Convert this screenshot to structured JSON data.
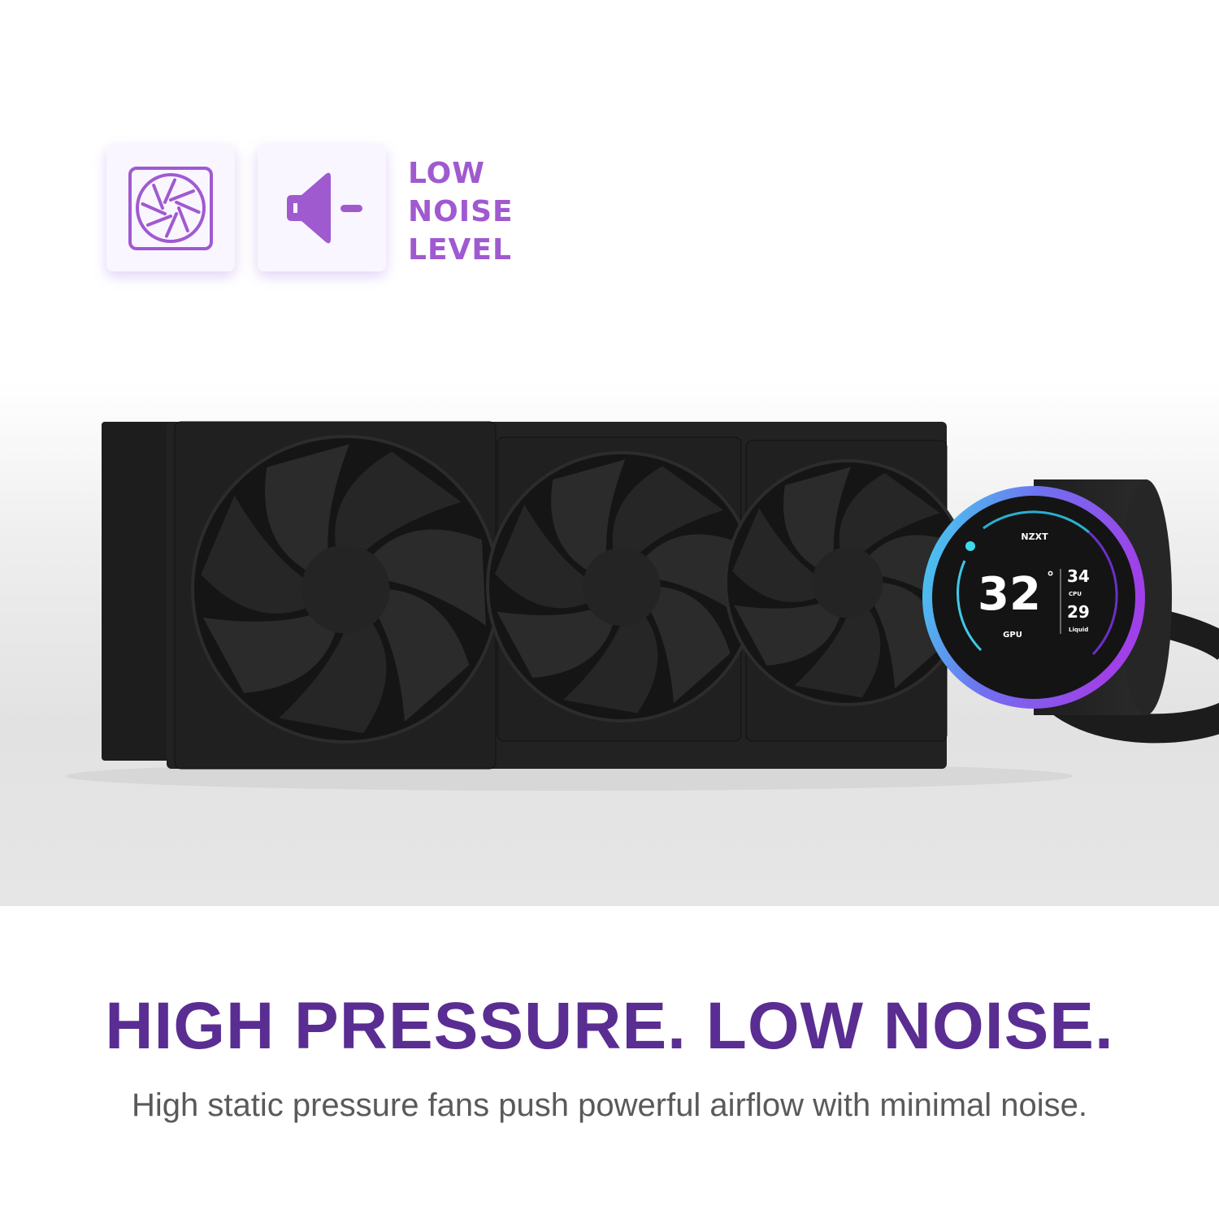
{
  "feature": {
    "icons": [
      "fan-icon",
      "speaker-low-volume-icon"
    ],
    "label_lines": [
      "LOW",
      "NOISE",
      "LEVEL"
    ]
  },
  "product_display": {
    "brand": "NZXT",
    "main_temp": "32",
    "main_label": "GPU",
    "degree": "°",
    "cpu_temp": "34",
    "cpu_label": "CPU",
    "liquid_temp": "29",
    "liquid_label": "Liquid"
  },
  "headline": "HIGH PRESSURE. LOW NOISE.",
  "subheadline": "High static pressure fans push powerful airflow with minimal noise.",
  "colors": {
    "accent": "#5a2d92",
    "icon_purple": "#a05ad0",
    "ring_cyan": "#3fd8ee",
    "ring_purple": "#a040e8"
  }
}
